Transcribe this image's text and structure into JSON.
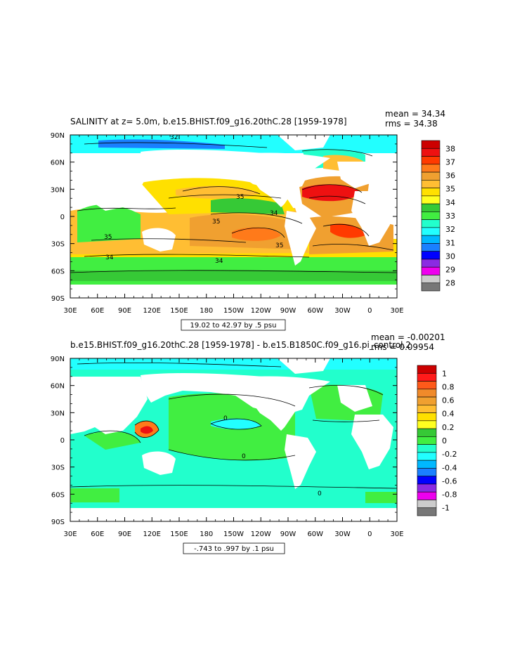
{
  "chart_data": [
    {
      "type": "heatmap",
      "title": "SALINITY at z=    5.0m, b.e15.BHIST.f09_g16.20thC.28  [1959-1978]",
      "stats": {
        "mean": "mean = 34.34",
        "rms": "rms = 34.38"
      },
      "x_ticks": [
        "30E",
        "60E",
        "90E",
        "120E",
        "150E",
        "180",
        "150W",
        "120W",
        "90W",
        "60W",
        "30W",
        "0",
        "30E"
      ],
      "y_ticks": [
        "90N",
        "60N",
        "30N",
        "0",
        "30S",
        "60S",
        "90S"
      ],
      "contour_info": "19.02 to 42.97 by .5 psu",
      "contour_labels": [
        "32",
        "35",
        "34",
        "35",
        "34",
        "35",
        "35",
        "34"
      ],
      "colorbar": {
        "labels": [
          "38",
          "37",
          "36",
          "35",
          "34",
          "33",
          "32",
          "31",
          "30",
          "29",
          "28"
        ],
        "colors": [
          "#cc0000",
          "#ee1111",
          "#ff3a00",
          "#ff7a1a",
          "#f0a030",
          "#ffbe33",
          "#ffe000",
          "#ffff20",
          "#36c936",
          "#41ee41",
          "#22ffcc",
          "#22ffff",
          "#00b8ff",
          "#1a80ff",
          "#0000ff",
          "#8a2be2",
          "#ee00ee",
          "#cccccc",
          "#777777"
        ]
      },
      "legend": "colorbar-right",
      "units": "psu"
    },
    {
      "type": "heatmap",
      "title": "b.e15.BHIST.f09_g16.20thC.28  [1959-1978] - b.e15.B1850C.f09_g16.pi_control.2",
      "stats": {
        "mean": "mean = -0.00201",
        "rms": "rms = 0.09954"
      },
      "x_ticks": [
        "30E",
        "60E",
        "90E",
        "120E",
        "150E",
        "180",
        "150W",
        "120W",
        "90W",
        "60W",
        "30W",
        "0",
        "30E"
      ],
      "y_ticks": [
        "90N",
        "60N",
        "30N",
        "0",
        "30S",
        "60S",
        "90S"
      ],
      "contour_info": "-.743 to .997 by .1 psu",
      "contour_labels": [
        "0",
        "0",
        "0"
      ],
      "colorbar": {
        "labels": [
          "1",
          "0.8",
          "0.6",
          "0.4",
          "0.2",
          "0",
          "-0.2",
          "-0.4",
          "-0.6",
          "-0.8",
          "-1"
        ],
        "colors": [
          "#cc0000",
          "#ff1a1a",
          "#ff5a1a",
          "#f08a2a",
          "#f0a030",
          "#ffbe33",
          "#ffe000",
          "#ffff20",
          "#36c936",
          "#41ee41",
          "#22ffcc",
          "#22ffff",
          "#00b8ff",
          "#1a80ff",
          "#0000ff",
          "#8a2be2",
          "#ee00ee",
          "#cccccc",
          "#777777"
        ]
      },
      "legend": "colorbar-right",
      "units": "psu"
    }
  ]
}
